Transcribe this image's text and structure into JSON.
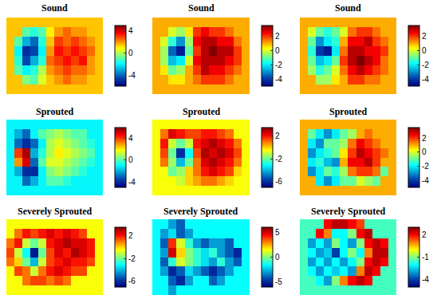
{
  "chart_data": [
    {
      "type": "heatmap",
      "title": "Sound",
      "tick_labels": false,
      "colorbar": {
        "range": [
          -6,
          5
        ],
        "ticks": [
          4,
          0,
          -4
        ]
      },
      "cells": [
        [
          1.5,
          1.5,
          1.5,
          1.5,
          1.5,
          1.5,
          1.5,
          1.5,
          1.5,
          1.5,
          1.5,
          1.5
        ],
        [
          1.5,
          1.5,
          -1,
          -1.5,
          -1,
          1,
          2,
          2.5,
          2,
          2,
          1.5,
          1.5
        ],
        [
          1.5,
          -1,
          -3,
          -4,
          -1.5,
          1.5,
          3,
          2.5,
          3,
          2.5,
          2,
          1.5
        ],
        [
          1.5,
          -2,
          -5,
          -4.5,
          -2,
          2,
          3.5,
          3,
          3.5,
          3,
          2.5,
          1.5
        ],
        [
          1.5,
          -1.5,
          -4.5,
          -3,
          -1.5,
          2.5,
          3,
          3.5,
          3,
          3.5,
          2,
          1.5
        ],
        [
          1.5,
          -1,
          -2,
          -1.5,
          0,
          2,
          2.5,
          3,
          2.5,
          2.5,
          2,
          1.5
        ],
        [
          1.5,
          1.5,
          -0.5,
          -1,
          0.5,
          1.5,
          2,
          2.5,
          2,
          2,
          1.5,
          1.5
        ],
        [
          1.5,
          1.5,
          1.5,
          1.5,
          1.5,
          1.5,
          1.5,
          1.5,
          1.5,
          1.5,
          1.5,
          1.5
        ]
      ]
    },
    {
      "type": "heatmap",
      "title": "Sound",
      "tick_labels": false,
      "colorbar": {
        "range": [
          -5,
          3.5
        ],
        "ticks": [
          2,
          0,
          -2,
          -4
        ]
      },
      "cells": [
        [
          1,
          1,
          1,
          1,
          1,
          1,
          1,
          1,
          1,
          1,
          1,
          1
        ],
        [
          1,
          1,
          0,
          -0.5,
          0.5,
          2,
          2.5,
          2,
          2,
          1.5,
          1,
          1
        ],
        [
          1,
          0,
          -1.5,
          -3,
          -0.5,
          2.5,
          3,
          3,
          2.5,
          2.5,
          1.5,
          1
        ],
        [
          1,
          -0.5,
          -3.5,
          -4.5,
          -1,
          2,
          3,
          3.5,
          3,
          3,
          2,
          1
        ],
        [
          1,
          -0.5,
          -2.5,
          -2,
          0,
          2.5,
          3,
          3,
          3,
          2.5,
          2,
          1
        ],
        [
          1,
          0.5,
          -1,
          -0.5,
          1,
          2,
          3,
          2.5,
          2.5,
          2,
          1.5,
          1
        ],
        [
          1,
          1,
          0.5,
          0.5,
          1,
          1.5,
          2,
          2,
          2,
          1.5,
          1,
          1
        ],
        [
          1,
          1,
          1,
          1,
          1,
          1,
          1,
          1,
          1,
          1,
          1,
          1
        ]
      ]
    },
    {
      "type": "heatmap",
      "title": "Sound",
      "tick_labels": false,
      "colorbar": {
        "range": [
          -5,
          3.5
        ],
        "ticks": [
          2,
          0,
          -2,
          -4
        ]
      },
      "cells": [
        [
          1,
          1,
          1,
          1,
          1,
          1,
          1,
          1,
          1,
          1,
          1,
          1
        ],
        [
          1,
          0,
          -1,
          -1.5,
          -1,
          0,
          1.5,
          2,
          2,
          1.5,
          1,
          1
        ],
        [
          1,
          -1,
          -3,
          -2,
          -1.5,
          1,
          2.5,
          2.5,
          3,
          2,
          1.5,
          1
        ],
        [
          1,
          -1.5,
          -4,
          -4.5,
          -2,
          1.5,
          3,
          3,
          2.5,
          2.5,
          2,
          1
        ],
        [
          1,
          -1,
          -2.5,
          -2,
          -1,
          2,
          3,
          3.5,
          3,
          2.5,
          1.5,
          1
        ],
        [
          1,
          -0.5,
          -1.5,
          -1,
          0,
          1.5,
          2.5,
          3,
          2.5,
          2,
          1.5,
          1
        ],
        [
          1,
          1,
          -0.5,
          -0.5,
          0.5,
          1,
          2,
          2,
          1.5,
          1.5,
          1,
          1
        ],
        [
          1,
          1,
          1,
          1,
          1,
          1,
          1,
          1,
          1,
          1,
          1,
          1
        ]
      ]
    },
    {
      "type": "heatmap",
      "title": "Sprouted",
      "tick_labels": false,
      "colorbar": {
        "range": [
          -5,
          6
        ],
        "ticks": [
          4,
          0,
          -4
        ]
      },
      "cells": [
        [
          -1,
          -1,
          -1,
          -1,
          -1,
          -1,
          -1,
          -1,
          -1,
          -1,
          -1,
          -1
        ],
        [
          -1,
          -2,
          -3,
          -1,
          0,
          0.5,
          1,
          0.5,
          0,
          0,
          -1,
          -1
        ],
        [
          -1,
          -3,
          -4,
          -3,
          -1,
          1,
          1.5,
          1,
          0.5,
          0,
          -0.5,
          -1
        ],
        [
          -1,
          4,
          5.5,
          -2,
          -0.5,
          1,
          2,
          1.5,
          1,
          0.5,
          0,
          -1
        ],
        [
          -1,
          3,
          5,
          -3,
          0,
          1.5,
          1.5,
          1,
          0.5,
          0,
          -0.5,
          -1
        ],
        [
          -1,
          -2,
          -4,
          -4,
          -1,
          0.5,
          1,
          0.5,
          0,
          -0.5,
          -1,
          -1
        ],
        [
          -1,
          -1,
          -3,
          -2,
          -1,
          0,
          0,
          -0.5,
          -1,
          -1,
          -1,
          -1
        ],
        [
          -1,
          -1,
          -1,
          -1,
          -1,
          -1,
          -1,
          -1,
          -1,
          -1,
          -1,
          -1
        ]
      ]
    },
    {
      "type": "heatmap",
      "title": "Sprouted",
      "tick_labels": false,
      "colorbar": {
        "range": [
          -7,
          3.5
        ],
        "ticks": [
          2,
          -2,
          -6
        ]
      },
      "cells": [
        [
          -0.5,
          -0.5,
          -0.5,
          -0.5,
          -0.5,
          -0.5,
          -0.5,
          -0.5,
          -0.5,
          -0.5,
          -0.5,
          -0.5
        ],
        [
          -0.5,
          1,
          2.5,
          2,
          1.5,
          1.5,
          2,
          2,
          1.5,
          1,
          -0.5,
          -0.5
        ],
        [
          -0.5,
          2,
          -1,
          -2,
          -1,
          2,
          2.5,
          3,
          2.5,
          2,
          1,
          -0.5
        ],
        [
          -0.5,
          1.5,
          -2,
          -6,
          -3,
          1.5,
          3,
          2.5,
          3,
          2.5,
          1.5,
          -0.5
        ],
        [
          -0.5,
          1,
          -1.5,
          -4,
          -2,
          1,
          2.5,
          3,
          2.5,
          2,
          1,
          -0.5
        ],
        [
          -0.5,
          -0.5,
          -2,
          -1.5,
          0,
          1,
          2,
          2.5,
          2,
          1.5,
          0,
          -0.5
        ],
        [
          -0.5,
          -0.5,
          -0.5,
          -1,
          0,
          0.5,
          1,
          1,
          0.5,
          0,
          -0.5,
          -0.5
        ],
        [
          -0.5,
          -0.5,
          -0.5,
          -0.5,
          -0.5,
          -0.5,
          -0.5,
          -0.5,
          -0.5,
          -0.5,
          -0.5,
          -0.5
        ]
      ]
    },
    {
      "type": "heatmap",
      "title": "Sprouted",
      "tick_labels": false,
      "colorbar": {
        "range": [
          -5,
          3.5
        ],
        "ticks": [
          2,
          0,
          -2,
          -4
        ]
      },
      "cells": [
        [
          1,
          1,
          1,
          1,
          1,
          1,
          1,
          1,
          1,
          1,
          1,
          1
        ],
        [
          1,
          -1,
          -2,
          -3,
          -2,
          -1,
          -0.5,
          1,
          1.5,
          1,
          1,
          1
        ],
        [
          1,
          -2,
          -3,
          -1,
          -1,
          -0.5,
          1.5,
          2.5,
          2,
          1.5,
          1,
          1
        ],
        [
          1,
          -3,
          -2,
          -1.5,
          -1,
          0.5,
          2,
          3,
          2.5,
          2,
          1.5,
          1
        ],
        [
          1,
          -2,
          -1.5,
          -2.5,
          -3,
          1,
          2.5,
          2.5,
          3,
          2,
          1,
          1
        ],
        [
          1,
          -3,
          -2,
          -1,
          -1.5,
          -0.5,
          1.5,
          2,
          2,
          1.5,
          -1,
          1
        ],
        [
          1,
          1,
          -2,
          -3,
          -2,
          -1,
          -1,
          0,
          -0.5,
          -1,
          1,
          1
        ],
        [
          1,
          1,
          1,
          1,
          1,
          1,
          1,
          1,
          1,
          1,
          1,
          1
        ]
      ]
    },
    {
      "type": "heatmap",
      "title": "Severely Sprouted",
      "tick_labels": false,
      "colorbar": {
        "range": [
          -7,
          3.5
        ],
        "ticks": [
          2,
          -2,
          -6
        ]
      },
      "cells": [
        [
          -0.5,
          -0.5,
          -0.5,
          -0.5,
          -0.5,
          -0.5,
          -0.5,
          -0.5,
          -0.5,
          -0.5,
          -0.5,
          -0.5
        ],
        [
          -0.5,
          1,
          2,
          1.5,
          2,
          2.5,
          2,
          2.5,
          2,
          1.5,
          -0.5,
          -0.5
        ],
        [
          1,
          2,
          -1,
          -2,
          -1,
          2,
          2.5,
          3,
          2.5,
          2.5,
          2,
          -0.5
        ],
        [
          1.5,
          -1,
          -3,
          -6.5,
          -2,
          1.5,
          2.5,
          2,
          3,
          2.5,
          2,
          -0.5
        ],
        [
          1,
          0,
          -2,
          -4,
          -1,
          1.5,
          2,
          2.5,
          2,
          2,
          1.5,
          -0.5
        ],
        [
          -0.5,
          1.5,
          1,
          -1,
          1,
          2,
          2.5,
          2,
          1.5,
          1.5,
          -0.5,
          -0.5
        ],
        [
          -0.5,
          -0.5,
          1,
          1.5,
          1.5,
          1,
          1.5,
          1,
          -0.5,
          -0.5,
          -0.5,
          -0.5
        ],
        [
          -0.5,
          -0.5,
          -0.5,
          -0.5,
          -0.5,
          -0.5,
          -0.5,
          -0.5,
          -0.5,
          -0.5,
          -0.5,
          -0.5
        ]
      ]
    },
    {
      "type": "heatmap",
      "title": "Severely Sprouted",
      "tick_labels": false,
      "colorbar": {
        "range": [
          -6,
          6
        ],
        "ticks": [
          5,
          0,
          -5
        ]
      },
      "cells": [
        [
          -1.5,
          -1.5,
          -3,
          -4,
          -1.5,
          -1.5,
          -1.5,
          -1.5,
          -1.5,
          -1.5,
          -1.5,
          -1.5
        ],
        [
          -1.5,
          -3,
          -2,
          -4,
          -3,
          -1.5,
          -1.5,
          -1.5,
          -1.5,
          -1.5,
          -1.5,
          -1.5
        ],
        [
          -1.5,
          -4,
          4,
          1,
          -1,
          -3,
          -4,
          -3,
          -3,
          -4,
          -1.5,
          -1.5
        ],
        [
          -1.5,
          -3,
          5,
          2,
          0,
          -1,
          -2,
          -1,
          -3,
          -4,
          -5,
          -1.5
        ],
        [
          -1.5,
          -4,
          -1,
          1,
          0,
          -1,
          -2,
          -3,
          -1,
          -3,
          -4,
          -1.5
        ],
        [
          -1.5,
          -3,
          -5,
          -4,
          -2,
          -3,
          -4,
          -5,
          -4,
          -3,
          -1.5,
          -1.5
        ],
        [
          -1.5,
          -1.5,
          -4,
          -5,
          -3,
          -1.5,
          -1.5,
          -4,
          -3,
          -1.5,
          -1.5,
          -1.5
        ],
        [
          -1.5,
          -1.5,
          -3,
          -1.5,
          -1.5,
          -1.5,
          -1.5,
          -1.5,
          -1.5,
          -1.5,
          -1.5,
          -1.5
        ]
      ]
    },
    {
      "type": "heatmap",
      "title": "Severely Sprouted",
      "tick_labels": false,
      "colorbar": {
        "range": [
          -5,
          3
        ],
        "ticks": [
          2,
          -1,
          -4
        ]
      },
      "cells": [
        [
          -1.5,
          -1.5,
          -1.5,
          2,
          2.5,
          2.5,
          2,
          1.5,
          -1.5,
          -1.5,
          -1.5,
          -1.5
        ],
        [
          -1.5,
          -1.5,
          2,
          1,
          -2,
          -2,
          -1,
          2,
          2.5,
          -1.5,
          -1.5,
          -1.5
        ],
        [
          -1.5,
          -3,
          -2,
          -3,
          -1,
          -2,
          -3,
          -1,
          2,
          2.5,
          2,
          -1.5
        ],
        [
          -1.5,
          -2,
          -3,
          -2.5,
          -4,
          -2,
          -1,
          -2,
          1,
          2.5,
          2.5,
          -1.5
        ],
        [
          -1.5,
          -3,
          -2,
          -3,
          -2,
          -3,
          -2,
          -1,
          2,
          2.5,
          2,
          -1.5
        ],
        [
          -1.5,
          -2,
          -3,
          -2,
          -2.5,
          -2,
          -3,
          1,
          2.5,
          2,
          -1.5,
          -1.5
        ],
        [
          -1.5,
          -1.5,
          -2,
          -3,
          -1,
          1,
          2,
          2.5,
          2,
          -1.5,
          -1.5,
          -1.5
        ],
        [
          -1.5,
          -1.5,
          -1.5,
          -1.5,
          -1.5,
          -1.5,
          -1.5,
          -1.5,
          -1.5,
          -1.5,
          -1.5,
          -1.5
        ]
      ]
    }
  ]
}
